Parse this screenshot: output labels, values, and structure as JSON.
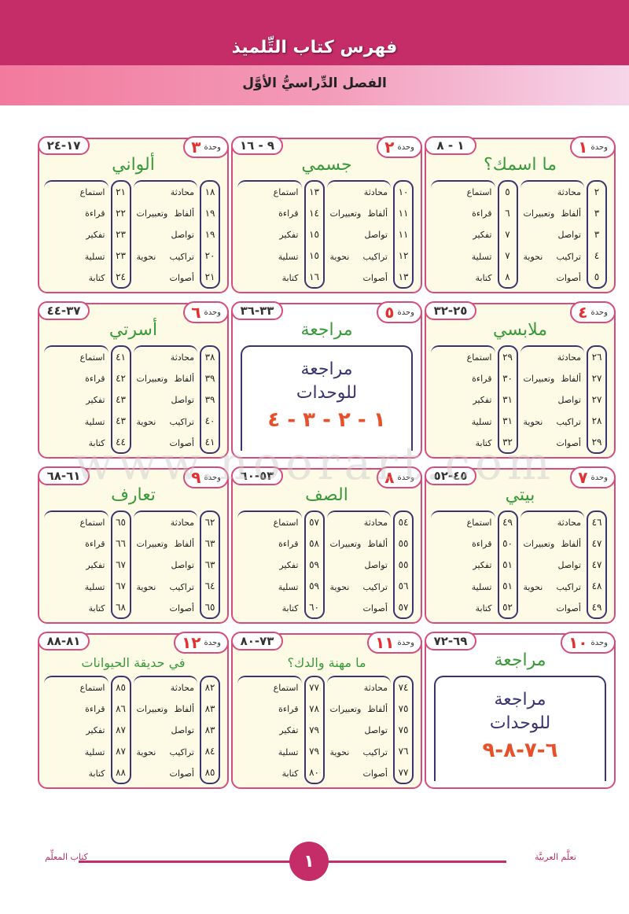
{
  "header": {
    "title": "فهرس كتاب التِّلميذ",
    "subtitle": "الفصل الدِّراسيُّ الأوَّل"
  },
  "unit_word": "وحدة",
  "labels_col1": [
    "محادثة",
    "ألفاظ وتعبيرات",
    "تواصل",
    "تراكيب نحوية",
    "أصوات"
  ],
  "labels_col2": [
    "استماع",
    "قراءة",
    "تفكير",
    "تسلية",
    "كتابة"
  ],
  "units": [
    {
      "num": "١",
      "range": "١ - ٨",
      "title": "ما اسمك؟",
      "col1": [
        "٢",
        "٣",
        "٣",
        "٤",
        "٥"
      ],
      "col2": [
        "٥",
        "٦",
        "٧",
        "٧",
        "٨"
      ]
    },
    {
      "num": "٢",
      "range": "٩ - ١٦",
      "title": "جسمي",
      "col1": [
        "١٠",
        "١١",
        "١١",
        "١٢",
        "١٣"
      ],
      "col2": [
        "١٣",
        "١٤",
        "١٥",
        "١٥",
        "١٦"
      ]
    },
    {
      "num": "٣",
      "range": "١٧-٢٤",
      "title": "ألواني",
      "col1": [
        "١٨",
        "١٩",
        "١٩",
        "٢٠",
        "٢١"
      ],
      "col2": [
        "٢١",
        "٢٢",
        "٢٣",
        "٢٣",
        "٢٤"
      ]
    },
    {
      "num": "٤",
      "range": "٢٥-٣٢",
      "title": "ملابسي",
      "col1": [
        "٢٦",
        "٢٧",
        "٢٧",
        "٢٨",
        "٢٩"
      ],
      "col2": [
        "٢٩",
        "٣٠",
        "٣١",
        "٣١",
        "٣٢"
      ]
    },
    {
      "num": "٥",
      "range": "٣٣-٣٦",
      "title": "مراجعة",
      "review": {
        "line1": "مراجعة",
        "line2": "للوحدات",
        "units": "١ - ٢ - ٣ - ٤"
      }
    },
    {
      "num": "٦",
      "range": "٣٧-٤٤",
      "title": "أسرتي",
      "col1": [
        "٣٨",
        "٣٩",
        "٣٩",
        "٤٠",
        "٤١"
      ],
      "col2": [
        "٤١",
        "٤٢",
        "٤٣",
        "٤٣",
        "٤٤"
      ]
    },
    {
      "num": "٧",
      "range": "٤٥-٥٢",
      "title": "بيتي",
      "col1": [
        "٤٦",
        "٤٧",
        "٤٧",
        "٤٨",
        "٤٩"
      ],
      "col2": [
        "٤٩",
        "٥٠",
        "٥١",
        "٥١",
        "٥٢"
      ]
    },
    {
      "num": "٨",
      "range": "٥٣-٦٠",
      "title": "الصف",
      "col1": [
        "٥٤",
        "٥٥",
        "٥٥",
        "٥٦",
        "٥٧"
      ],
      "col2": [
        "٥٧",
        "٥٨",
        "٥٩",
        "٥٩",
        "٦٠"
      ]
    },
    {
      "num": "٩",
      "range": "٦١-٦٨",
      "title": "تعارف",
      "col1": [
        "٦٢",
        "٦٣",
        "٦٣",
        "٦٤",
        "٦٥"
      ],
      "col2": [
        "٦٥",
        "٦٦",
        "٦٧",
        "٦٧",
        "٦٨"
      ]
    },
    {
      "num": "١٠",
      "range": "٦٩-٧٢",
      "title": "مراجعة",
      "review": {
        "line1": "مراجعة",
        "line2": "للوحدات",
        "units": "٦-٧-٨-٩"
      }
    },
    {
      "num": "١١",
      "range": "٧٣-٨٠",
      "title": "ما مهنة والدك؟",
      "small": true,
      "col1": [
        "٧٤",
        "٧٥",
        "٧٥",
        "٧٦",
        "٧٧"
      ],
      "col2": [
        "٧٧",
        "٧٨",
        "٧٩",
        "٧٩",
        "٨٠"
      ]
    },
    {
      "num": "١٢",
      "range": "٨١-٨٨",
      "title": "في حديقة الحيوانات",
      "small": true,
      "col1": [
        "٨٢",
        "٨٣",
        "٨٣",
        "٨٤",
        "٨٥"
      ],
      "col2": [
        "٨٥",
        "٨٦",
        "٨٧",
        "٨٧",
        "٨٨"
      ]
    }
  ],
  "watermark": "www.noorart.com",
  "footer": {
    "page_number": "١",
    "left_text": "كتاب المعلِّم",
    "right_text": "تعلَّم العربيَّة"
  },
  "colors": {
    "brand": "#c42d67",
    "title_green": "#3a9a3a",
    "number_red": "#e33030",
    "navy": "#3a3470"
  }
}
